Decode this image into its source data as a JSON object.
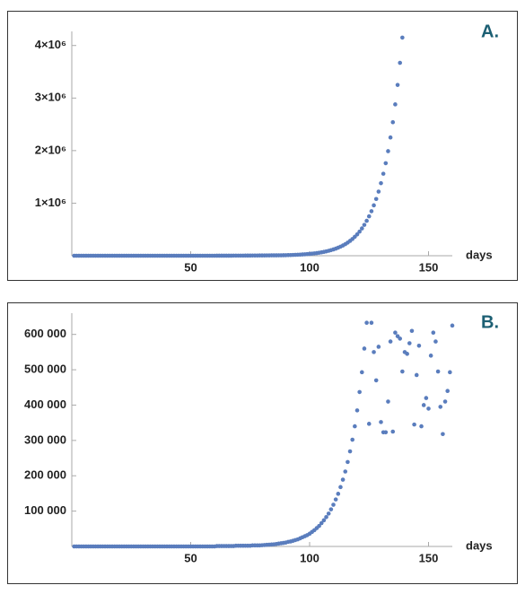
{
  "chart_data": [
    {
      "type": "scatter",
      "annotation": "A.",
      "x_label": "days",
      "color": "#5a7dbd",
      "xlim": [
        0,
        160
      ],
      "ylim": [
        0,
        4200000
      ],
      "xticks": [
        50,
        100,
        150
      ],
      "yticks": [
        {
          "value": 1000000,
          "label": "1×10⁶"
        },
        {
          "value": 2000000,
          "label": "2×10⁶"
        },
        {
          "value": 3000000,
          "label": "3×10⁶"
        },
        {
          "value": 4000000,
          "label": "4×10⁶"
        }
      ],
      "x": [
        1,
        2,
        3,
        4,
        5,
        6,
        7,
        8,
        9,
        10,
        11,
        12,
        13,
        14,
        15,
        16,
        17,
        18,
        19,
        20,
        21,
        22,
        23,
        24,
        25,
        26,
        27,
        28,
        29,
        30,
        31,
        32,
        33,
        34,
        35,
        36,
        37,
        38,
        39,
        40,
        41,
        42,
        43,
        44,
        45,
        46,
        47,
        48,
        49,
        50,
        51,
        52,
        53,
        54,
        55,
        56,
        57,
        58,
        59,
        60,
        61,
        62,
        63,
        64,
        65,
        66,
        67,
        68,
        69,
        70,
        71,
        72,
        73,
        74,
        75,
        76,
        77,
        78,
        79,
        80,
        81,
        82,
        83,
        84,
        85,
        86,
        87,
        88,
        89,
        90,
        91,
        92,
        93,
        94,
        95,
        96,
        97,
        98,
        99,
        100,
        101,
        102,
        103,
        104,
        105,
        106,
        107,
        108,
        109,
        110,
        111,
        112,
        113,
        114,
        115,
        116,
        117,
        118,
        119,
        120,
        121,
        122,
        123,
        124,
        125,
        126,
        127,
        128,
        129,
        130,
        131,
        132,
        133,
        134,
        135,
        136,
        137,
        138,
        139
      ],
      "values": [
        0,
        0,
        0,
        0,
        0,
        0,
        0,
        0,
        0,
        0,
        0,
        0,
        0,
        0,
        0,
        0,
        0,
        0,
        0,
        0,
        0,
        0,
        0,
        0,
        0,
        0,
        0,
        0,
        0,
        0,
        0,
        0,
        0,
        0,
        0,
        0,
        0,
        0,
        0,
        0,
        0,
        0,
        0,
        0,
        0,
        0,
        0,
        0,
        0,
        0,
        0,
        0,
        0,
        0,
        0,
        0,
        0,
        0,
        0,
        0,
        1000,
        1000,
        1000,
        1000,
        1000,
        1000,
        1000,
        2000,
        2000,
        2000,
        2000,
        2000,
        3000,
        3000,
        3000,
        4000,
        4000,
        4000,
        5000,
        5000,
        5000,
        6000,
        6000,
        7000,
        7000,
        7000,
        8000,
        8000,
        9000,
        10000,
        12000,
        13000,
        15000,
        17000,
        19000,
        21000,
        24000,
        27000,
        31000,
        35000,
        40000,
        45000,
        50000,
        57000,
        65000,
        73000,
        83000,
        94000,
        106000,
        120000,
        135000,
        153000,
        173000,
        195000,
        220000,
        249000,
        282000,
        318000,
        360000,
        406000,
        459000,
        519000,
        587000,
        664000,
        750000,
        847000,
        959000,
        1080000,
        1220000,
        1380000,
        1560000,
        1760000,
        1990000,
        2250000,
        2540000,
        2880000,
        3250000,
        3670000,
        4150000
      ]
    },
    {
      "type": "scatter",
      "annotation": "B.",
      "x_label": "days",
      "color": "#5a7dbd",
      "xlim": [
        0,
        160
      ],
      "ylim": [
        0,
        650000
      ],
      "xticks": [
        50,
        100,
        150
      ],
      "yticks": [
        {
          "value": 100000,
          "label": "100 000"
        },
        {
          "value": 200000,
          "label": "200 000"
        },
        {
          "value": 300000,
          "label": "300 000"
        },
        {
          "value": 400000,
          "label": "400 000"
        },
        {
          "value": 500000,
          "label": "500 000"
        },
        {
          "value": 600000,
          "label": "600 000"
        }
      ],
      "x": [
        1,
        2,
        3,
        4,
        5,
        6,
        7,
        8,
        9,
        10,
        11,
        12,
        13,
        14,
        15,
        16,
        17,
        18,
        19,
        20,
        21,
        22,
        23,
        24,
        25,
        26,
        27,
        28,
        29,
        30,
        31,
        32,
        33,
        34,
        35,
        36,
        37,
        38,
        39,
        40,
        41,
        42,
        43,
        44,
        45,
        46,
        47,
        48,
        49,
        50,
        51,
        52,
        53,
        54,
        55,
        56,
        57,
        58,
        59,
        60,
        61,
        62,
        63,
        64,
        65,
        66,
        67,
        68,
        69,
        70,
        71,
        72,
        73,
        74,
        75,
        76,
        77,
        78,
        79,
        80,
        81,
        82,
        83,
        84,
        85,
        86,
        87,
        88,
        89,
        90,
        91,
        92,
        93,
        94,
        95,
        96,
        97,
        98,
        99,
        100,
        101,
        102,
        103,
        104,
        105,
        106,
        107,
        108,
        109,
        110,
        111,
        112,
        113,
        114,
        115,
        116,
        117,
        118,
        119,
        120,
        121,
        122,
        123,
        124,
        125,
        126,
        127,
        128,
        129,
        130,
        131,
        132,
        133,
        134,
        135,
        136,
        137,
        138,
        139,
        140,
        141,
        142,
        143,
        144,
        145,
        146,
        147,
        148,
        149,
        150,
        151,
        152,
        153,
        154,
        155,
        156,
        157,
        158,
        159,
        160
      ],
      "values": [
        0,
        0,
        0,
        0,
        0,
        0,
        0,
        0,
        0,
        0,
        0,
        0,
        0,
        0,
        0,
        0,
        0,
        0,
        0,
        0,
        0,
        0,
        0,
        0,
        0,
        0,
        0,
        0,
        0,
        0,
        0,
        0,
        0,
        0,
        0,
        0,
        0,
        0,
        0,
        0,
        0,
        0,
        0,
        0,
        0,
        0,
        0,
        0,
        0,
        0,
        0,
        0,
        0,
        0,
        0,
        0,
        0,
        0,
        0,
        0,
        1000,
        1000,
        1000,
        1000,
        1000,
        1000,
        1000,
        1000,
        2000,
        2000,
        2000,
        2000,
        2000,
        2000,
        2000,
        3000,
        3000,
        3000,
        3000,
        3500,
        4000,
        4500,
        5000,
        5500,
        6000,
        7000,
        8000,
        9000,
        10000,
        11000,
        13000,
        14000,
        16000,
        18000,
        20000,
        23000,
        26000,
        29000,
        32000,
        36000,
        41000,
        46000,
        52000,
        58000,
        66000,
        74000,
        83000,
        93000,
        105000,
        118000,
        133000,
        149000,
        168000,
        189000,
        212000,
        239000,
        269000,
        302000,
        340000,
        385000,
        437000,
        493000,
        560000,
        633000,
        347000,
        633000,
        550000,
        470000,
        565000,
        352000,
        323000,
        323000,
        410000,
        580000,
        325000,
        605000,
        595000,
        588000,
        495000,
        550000,
        545000,
        575000,
        610000,
        345000,
        485000,
        568000,
        340000,
        400000,
        420000,
        390000,
        540000,
        605000,
        580000,
        495000,
        395000,
        318000,
        410000,
        440000,
        493000,
        625000
      ]
    }
  ]
}
